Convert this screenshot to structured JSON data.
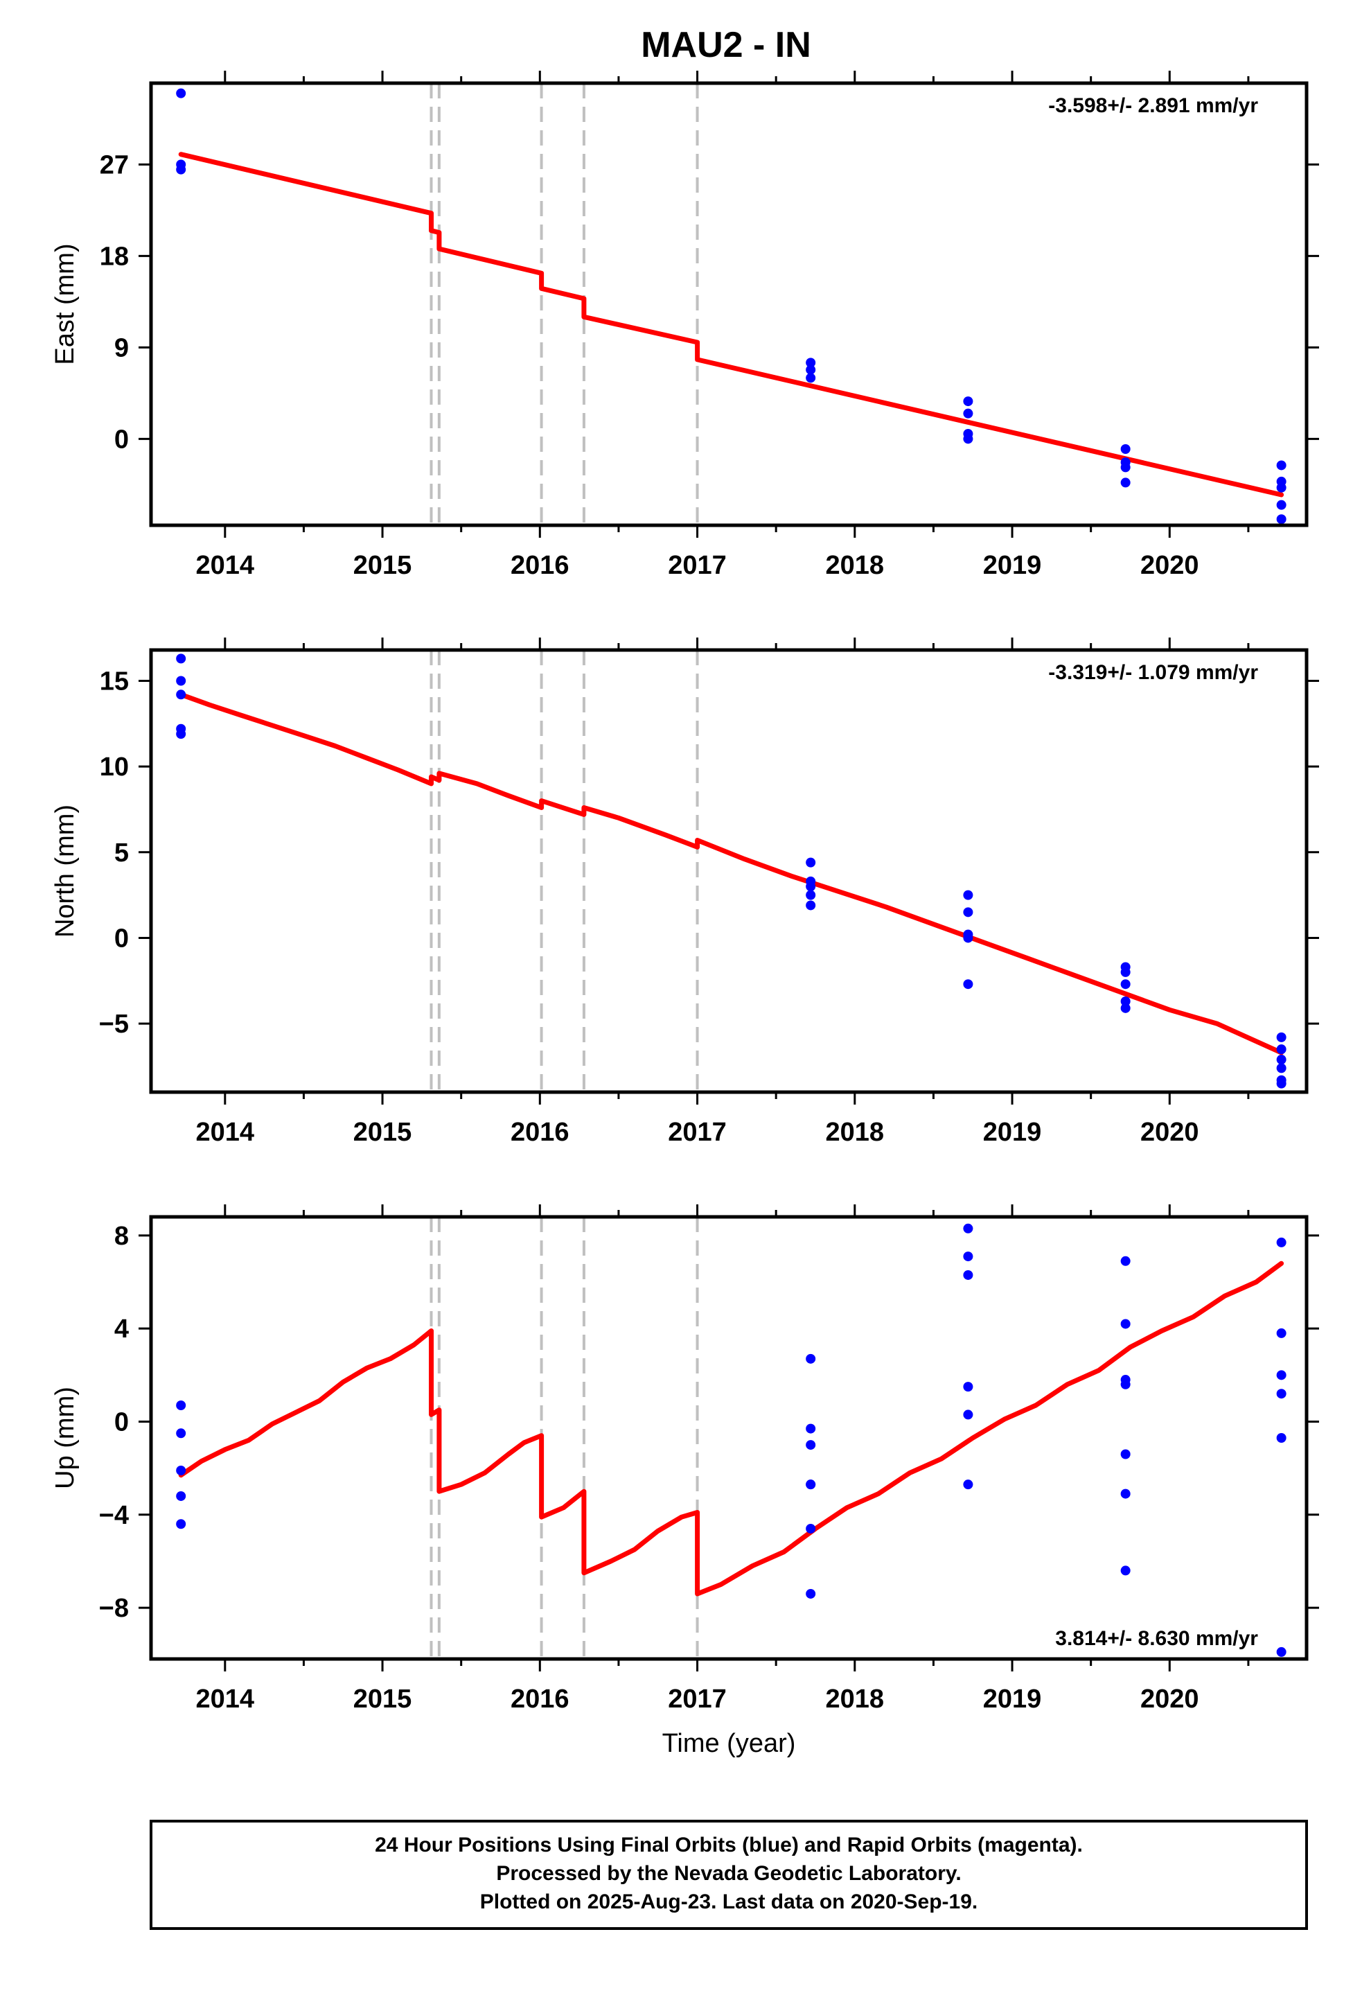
{
  "title": "MAU2 - IN",
  "footer": {
    "lines": [
      "24 Hour Positions Using Final Orbits (blue) and Rapid Orbits (magenta).",
      "Processed by the Nevada Geodetic Laboratory.",
      "Plotted on 2025-Aug-23. Last data on 2020-Sep-19."
    ]
  },
  "colors": {
    "data": "#0000ff",
    "model": "#ff0000",
    "breaks": "#c0c0c0",
    "frame": "#000000"
  },
  "chart_data": [
    {
      "type": "scatter",
      "ylabel": "East (mm)",
      "xlabel": "",
      "rate_text": "-3.598+/- 2.891 mm/yr",
      "rate_position": "top-right",
      "xlim": [
        2013.53,
        2020.87
      ],
      "ylim": [
        -8.5,
        35
      ],
      "yticks": [
        0,
        9,
        18,
        27
      ],
      "xticks": [
        2014,
        2015,
        2016,
        2017,
        2018,
        2019,
        2020
      ],
      "breaks": [
        2015.31,
        2015.36,
        2016.01,
        2016.28,
        2017.0
      ],
      "points": [
        [
          2013.72,
          34.0
        ],
        [
          2013.72,
          27.0
        ],
        [
          2013.72,
          26.5
        ],
        [
          2017.72,
          7.5
        ],
        [
          2017.72,
          6.8
        ],
        [
          2017.72,
          6.0
        ],
        [
          2018.72,
          3.7
        ],
        [
          2018.72,
          2.5
        ],
        [
          2018.72,
          0.5
        ],
        [
          2018.72,
          0.0
        ],
        [
          2019.72,
          -1.0
        ],
        [
          2019.72,
          -2.3
        ],
        [
          2019.72,
          -2.8
        ],
        [
          2019.72,
          -4.3
        ],
        [
          2020.71,
          -2.6
        ],
        [
          2020.71,
          -4.2
        ],
        [
          2020.71,
          -4.8
        ],
        [
          2020.71,
          -6.5
        ],
        [
          2020.71,
          -7.9
        ]
      ],
      "model_line": [
        [
          2013.72,
          28.0
        ],
        [
          2015.31,
          22.2
        ],
        [
          2015.31,
          20.5
        ],
        [
          2015.36,
          20.3
        ],
        [
          2015.36,
          18.7
        ],
        [
          2016.01,
          16.3
        ],
        [
          2016.01,
          14.8
        ],
        [
          2016.28,
          13.8
        ],
        [
          2016.28,
          12.0
        ],
        [
          2017.0,
          9.5
        ],
        [
          2017.0,
          7.8
        ],
        [
          2020.71,
          -5.5
        ]
      ]
    },
    {
      "type": "scatter",
      "ylabel": "North (mm)",
      "xlabel": "",
      "rate_text": "-3.319+/- 1.079 mm/yr",
      "rate_position": "top-right",
      "xlim": [
        2013.53,
        2020.87
      ],
      "ylim": [
        -9,
        16.8
      ],
      "yticks": [
        -5,
        0,
        5,
        10,
        15
      ],
      "xticks": [
        2014,
        2015,
        2016,
        2017,
        2018,
        2019,
        2020
      ],
      "breaks": [
        2015.31,
        2015.36,
        2016.01,
        2016.28,
        2017.0
      ],
      "points": [
        [
          2013.72,
          16.3
        ],
        [
          2013.72,
          15.0
        ],
        [
          2013.72,
          14.2
        ],
        [
          2013.72,
          12.2
        ],
        [
          2013.72,
          11.9
        ],
        [
          2017.72,
          4.4
        ],
        [
          2017.72,
          3.3
        ],
        [
          2017.72,
          3.0
        ],
        [
          2017.72,
          2.5
        ],
        [
          2017.72,
          1.9
        ],
        [
          2018.72,
          2.5
        ],
        [
          2018.72,
          1.5
        ],
        [
          2018.72,
          0.2
        ],
        [
          2018.72,
          0.0
        ],
        [
          2018.72,
          -2.7
        ],
        [
          2019.72,
          -1.7
        ],
        [
          2019.72,
          -2.0
        ],
        [
          2019.72,
          -2.7
        ],
        [
          2019.72,
          -3.7
        ],
        [
          2019.72,
          -4.1
        ],
        [
          2020.71,
          -5.8
        ],
        [
          2020.71,
          -6.5
        ],
        [
          2020.71,
          -7.1
        ],
        [
          2020.71,
          -7.6
        ],
        [
          2020.71,
          -8.3
        ],
        [
          2020.71,
          -8.5
        ]
      ],
      "model_line": [
        [
          2013.72,
          14.2
        ],
        [
          2013.9,
          13.6
        ],
        [
          2014.1,
          13.0
        ],
        [
          2014.3,
          12.4
        ],
        [
          2014.5,
          11.8
        ],
        [
          2014.7,
          11.2
        ],
        [
          2014.9,
          10.5
        ],
        [
          2015.1,
          9.8
        ],
        [
          2015.31,
          9.0
        ],
        [
          2015.31,
          9.4
        ],
        [
          2015.36,
          9.2
        ],
        [
          2015.36,
          9.6
        ],
        [
          2015.6,
          9.0
        ],
        [
          2015.8,
          8.3
        ],
        [
          2016.01,
          7.6
        ],
        [
          2016.01,
          8.0
        ],
        [
          2016.28,
          7.2
        ],
        [
          2016.28,
          7.6
        ],
        [
          2016.5,
          7.0
        ],
        [
          2016.8,
          6.0
        ],
        [
          2017.0,
          5.3
        ],
        [
          2017.0,
          5.7
        ],
        [
          2017.3,
          4.6
        ],
        [
          2017.6,
          3.6
        ],
        [
          2017.9,
          2.7
        ],
        [
          2018.2,
          1.8
        ],
        [
          2018.5,
          0.8
        ],
        [
          2018.8,
          -0.2
        ],
        [
          2019.1,
          -1.2
        ],
        [
          2019.4,
          -2.2
        ],
        [
          2019.7,
          -3.2
        ],
        [
          2020.0,
          -4.2
        ],
        [
          2020.3,
          -5.0
        ],
        [
          2020.71,
          -6.7
        ]
      ]
    },
    {
      "type": "scatter",
      "ylabel": "Up (mm)",
      "xlabel": "Time (year)",
      "rate_text": "3.814+/- 8.630 mm/yr",
      "rate_position": "bottom-right",
      "xlim": [
        2013.53,
        2020.87
      ],
      "ylim": [
        -10.2,
        8.8
      ],
      "yticks": [
        -8,
        -4,
        0,
        4,
        8
      ],
      "xticks": [
        2014,
        2015,
        2016,
        2017,
        2018,
        2019,
        2020
      ],
      "breaks": [
        2015.31,
        2015.36,
        2016.01,
        2016.28,
        2017.0
      ],
      "points": [
        [
          2013.72,
          0.7
        ],
        [
          2013.72,
          -0.5
        ],
        [
          2013.72,
          -2.1
        ],
        [
          2013.72,
          -3.2
        ],
        [
          2013.72,
          -4.4
        ],
        [
          2017.72,
          2.7
        ],
        [
          2017.72,
          -0.3
        ],
        [
          2017.72,
          -1.0
        ],
        [
          2017.72,
          -2.7
        ],
        [
          2017.72,
          -2.7
        ],
        [
          2017.72,
          -4.6
        ],
        [
          2017.72,
          -7.4
        ],
        [
          2018.72,
          8.3
        ],
        [
          2018.72,
          7.1
        ],
        [
          2018.72,
          6.3
        ],
        [
          2018.72,
          1.5
        ],
        [
          2018.72,
          0.3
        ],
        [
          2018.72,
          -2.7
        ],
        [
          2019.72,
          6.9
        ],
        [
          2019.72,
          4.2
        ],
        [
          2019.72,
          1.8
        ],
        [
          2019.72,
          1.6
        ],
        [
          2019.72,
          -1.4
        ],
        [
          2019.72,
          -3.1
        ],
        [
          2019.72,
          -6.4
        ],
        [
          2020.71,
          7.7
        ],
        [
          2020.71,
          3.8
        ],
        [
          2020.71,
          2.0
        ],
        [
          2020.71,
          1.2
        ],
        [
          2020.71,
          -0.7
        ],
        [
          2020.71,
          -9.9
        ]
      ],
      "model_line": [
        [
          2013.72,
          -2.3
        ],
        [
          2013.85,
          -1.7
        ],
        [
          2014.0,
          -1.2
        ],
        [
          2014.15,
          -0.8
        ],
        [
          2014.3,
          -0.1
        ],
        [
          2014.45,
          0.4
        ],
        [
          2014.6,
          0.9
        ],
        [
          2014.75,
          1.7
        ],
        [
          2014.9,
          2.3
        ],
        [
          2015.05,
          2.7
        ],
        [
          2015.2,
          3.3
        ],
        [
          2015.31,
          3.9
        ],
        [
          2015.31,
          0.3
        ],
        [
          2015.36,
          0.5
        ],
        [
          2015.36,
          -3.0
        ],
        [
          2015.5,
          -2.7
        ],
        [
          2015.65,
          -2.2
        ],
        [
          2015.8,
          -1.4
        ],
        [
          2015.9,
          -0.9
        ],
        [
          2016.01,
          -0.6
        ],
        [
          2016.01,
          -4.1
        ],
        [
          2016.15,
          -3.7
        ],
        [
          2016.28,
          -3.0
        ],
        [
          2016.28,
          -6.5
        ],
        [
          2016.45,
          -6.0
        ],
        [
          2016.6,
          -5.5
        ],
        [
          2016.75,
          -4.7
        ],
        [
          2016.9,
          -4.1
        ],
        [
          2017.0,
          -3.9
        ],
        [
          2017.0,
          -7.4
        ],
        [
          2017.15,
          -7.0
        ],
        [
          2017.35,
          -6.2
        ],
        [
          2017.55,
          -5.6
        ],
        [
          2017.75,
          -4.6
        ],
        [
          2017.95,
          -3.7
        ],
        [
          2018.15,
          -3.1
        ],
        [
          2018.35,
          -2.2
        ],
        [
          2018.55,
          -1.6
        ],
        [
          2018.75,
          -0.7
        ],
        [
          2018.95,
          0.1
        ],
        [
          2019.15,
          0.7
        ],
        [
          2019.35,
          1.6
        ],
        [
          2019.55,
          2.2
        ],
        [
          2019.75,
          3.2
        ],
        [
          2019.95,
          3.9
        ],
        [
          2020.15,
          4.5
        ],
        [
          2020.35,
          5.4
        ],
        [
          2020.55,
          6.0
        ],
        [
          2020.71,
          6.8
        ]
      ]
    }
  ]
}
